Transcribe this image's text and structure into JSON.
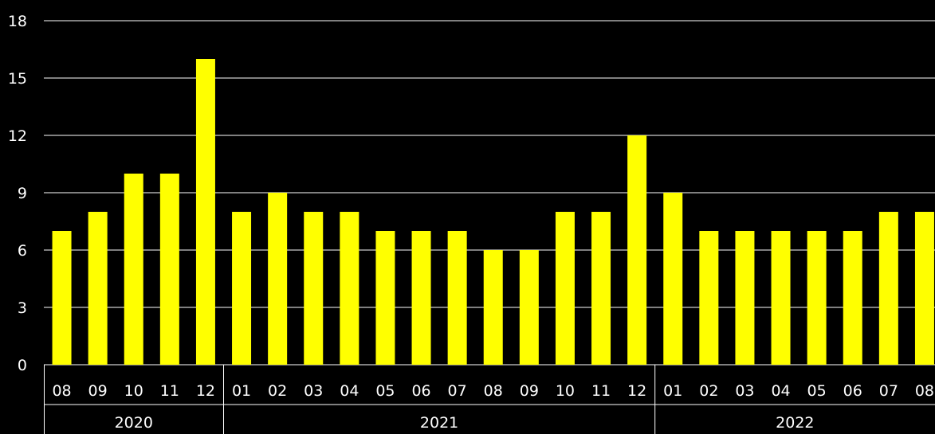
{
  "chart_data": {
    "type": "bar",
    "title": "",
    "xlabel": "",
    "ylabel": "",
    "ylim": [
      0,
      18
    ],
    "yticks": [
      0,
      3,
      6,
      9,
      12,
      15,
      18
    ],
    "grid": true,
    "legend": "none",
    "categories": [
      "08",
      "09",
      "10",
      "11",
      "12",
      "01",
      "02",
      "03",
      "04",
      "05",
      "06",
      "07",
      "08",
      "09",
      "10",
      "11",
      "12",
      "01",
      "02",
      "03",
      "04",
      "05",
      "06",
      "07",
      "08"
    ],
    "groups": [
      {
        "label": "2020",
        "count": 5
      },
      {
        "label": "2021",
        "count": 12
      },
      {
        "label": "2022",
        "count": 8
      }
    ],
    "values": [
      7,
      8,
      10,
      10,
      16,
      8,
      9,
      8,
      8,
      7,
      7,
      7,
      6,
      6,
      8,
      8,
      12,
      9,
      7,
      7,
      7,
      7,
      7,
      8,
      8
    ],
    "colors": {
      "bar": "#ffff00",
      "background": "#000000",
      "grid": "#ffffff",
      "text": "#ffffff"
    }
  }
}
